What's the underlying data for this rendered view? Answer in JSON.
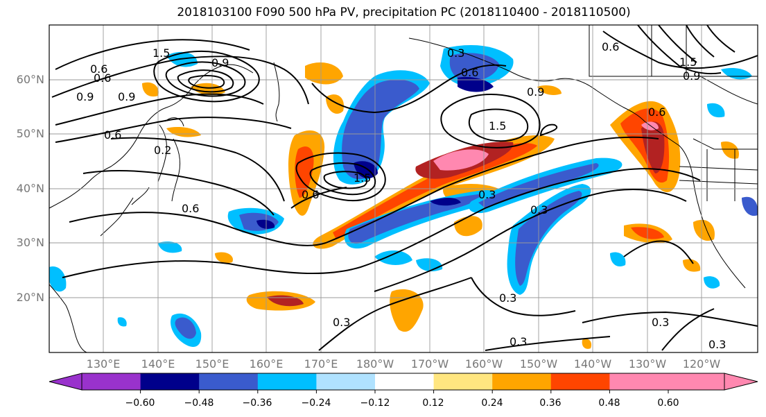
{
  "title": "2018103100 F090 500 hPa PV, precipitation PC (2018110400 - 2018110500)",
  "lat_labels": [
    "60°N",
    "50°N",
    "40°N",
    "30°N",
    "20°N"
  ],
  "lon_labels": [
    "130°E",
    "140°E",
    "150°E",
    "160°E",
    "170°E",
    "180°W",
    "170°W",
    "160°W",
    "150°W",
    "140°W",
    "130°W",
    "120°W"
  ],
  "contour_labels": [
    "1.5",
    "0.9",
    "0.6",
    "0.9",
    "0.3",
    "0.6",
    "0.9",
    "1.5",
    "0.6",
    "0.6",
    "0.3",
    "0.6",
    "0.2",
    "0.6",
    "1.5",
    "0.3",
    "0.3",
    "0.3",
    "0.3",
    "0.3",
    "0.6",
    "0.9",
    "1.5",
    "0.9",
    "0.3",
    "0.6"
  ],
  "colorbar": {
    "colors": [
      "#9932CC",
      "#00008B",
      "#3A5BCD",
      "#00BFFF",
      "#B0E2FF",
      "#FFFFFF",
      "#FFE680",
      "#FFA500",
      "#FF4500",
      "#B22222",
      "#FF88B0"
    ],
    "tick_labels": [
      "−0.60",
      "−0.48",
      "−0.36",
      "−0.24",
      "−0.12",
      "0.12",
      "0.24",
      "0.36",
      "0.48",
      "0.60"
    ]
  }
}
